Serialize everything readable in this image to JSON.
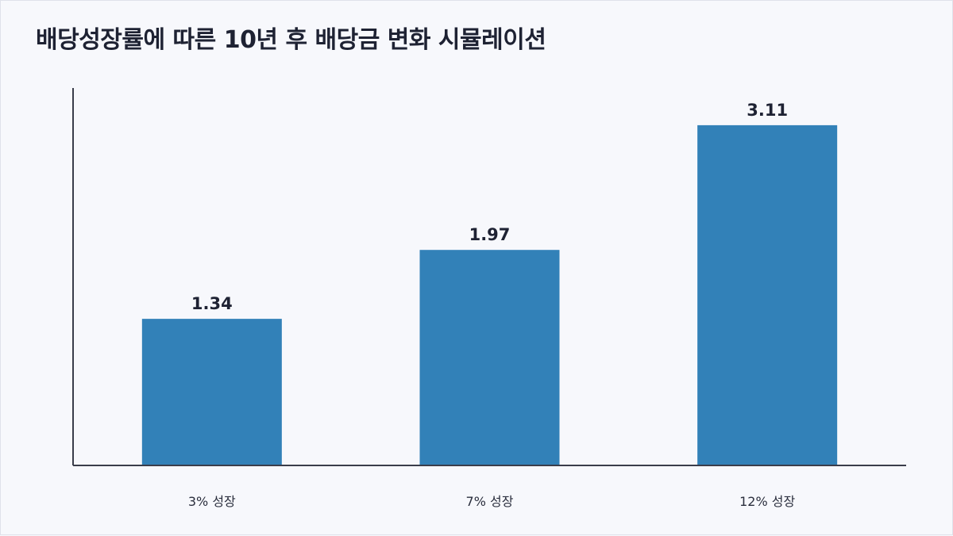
{
  "title": "배당성장률에 따른 10년 후 배당금 변화 시뮬레이션",
  "colors": {
    "bar": "#3281b8",
    "axis": "#3a3d4a",
    "background": "#f7f8fc",
    "text": "#1e2233"
  },
  "chart_data": {
    "type": "bar",
    "title": "배당성장률에 따른 10년 후 배당금 변화 시뮬레이션",
    "categories": [
      "3% 성장",
      "7% 성장",
      "12% 성장"
    ],
    "values": [
      1.34,
      1.97,
      3.11
    ],
    "value_labels": [
      "1.34",
      "1.97",
      "3.11"
    ],
    "xlabel": "",
    "ylabel": "",
    "ylim": [
      0,
      3.45
    ],
    "grid": false,
    "legend": "none"
  }
}
